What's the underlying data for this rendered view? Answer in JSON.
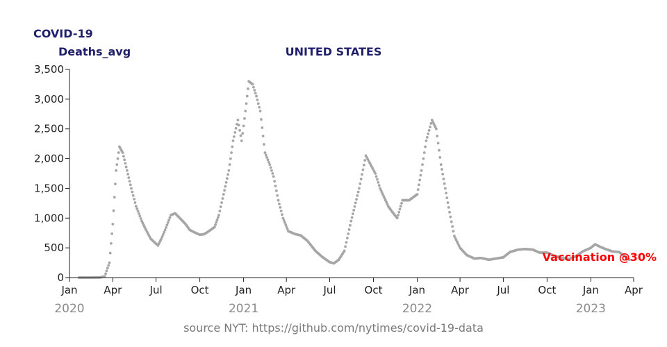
{
  "header": {
    "metric_title": "COVID-19",
    "metric_subtitle": "Deaths_avg",
    "region_title": "UNITED STATES"
  },
  "source_text": "source NYT: https://github.com/nytimes/covid-19-data",
  "annotation": {
    "text": "Vaccination @30%",
    "color": "#ff0000"
  },
  "colors": {
    "points": "#a6a6a6",
    "title": "#1f1f6b",
    "year_labels": "#8a8a8a"
  },
  "chart_data": {
    "type": "scatter",
    "title": "UNITED STATES",
    "ylabel": "Deaths_avg",
    "xlabel": "",
    "x_range": [
      "2020-01-01",
      "2023-04-01"
    ],
    "ylim": [
      0,
      3500
    ],
    "grid": false,
    "y_ticks": [
      0,
      500,
      1000,
      1500,
      2000,
      2500,
      3000,
      3500
    ],
    "y_tick_labels": [
      "0",
      "500",
      "1,000",
      "1,500",
      "2,000",
      "2,500",
      "3,000",
      "3,500"
    ],
    "x_ticks": [
      "2020-01-01",
      "2020-04-01",
      "2020-07-01",
      "2020-10-01",
      "2021-01-01",
      "2021-04-01",
      "2021-07-01",
      "2021-10-01",
      "2022-01-01",
      "2022-04-01",
      "2022-07-01",
      "2022-10-01",
      "2023-01-01",
      "2023-04-01"
    ],
    "x_tick_labels": [
      "Jan",
      "Apr",
      "Jul",
      "Oct",
      "Jan",
      "Apr",
      "Jul",
      "Oct",
      "Jan",
      "Apr",
      "Jul",
      "Oct",
      "Jan",
      "Apr"
    ],
    "year_labels": [
      {
        "date": "2020-01-01",
        "label": "2020"
      },
      {
        "date": "2021-01-01",
        "label": "2021"
      },
      {
        "date": "2022-01-01",
        "label": "2022"
      },
      {
        "date": "2023-01-01",
        "label": "2023"
      }
    ],
    "series": [
      {
        "points": [
          [
            "2020-01-21",
            0
          ],
          [
            "2020-02-15",
            0
          ],
          [
            "2020-03-05",
            2
          ],
          [
            "2020-03-15",
            20
          ],
          [
            "2020-03-25",
            250
          ],
          [
            "2020-04-01",
            900
          ],
          [
            "2020-04-08",
            1800
          ],
          [
            "2020-04-15",
            2200
          ],
          [
            "2020-04-22",
            2100
          ],
          [
            "2020-05-01",
            1800
          ],
          [
            "2020-05-10",
            1500
          ],
          [
            "2020-05-20",
            1200
          ],
          [
            "2020-06-01",
            950
          ],
          [
            "2020-06-10",
            800
          ],
          [
            "2020-06-20",
            650
          ],
          [
            "2020-07-01",
            570
          ],
          [
            "2020-07-05",
            540
          ],
          [
            "2020-07-12",
            650
          ],
          [
            "2020-07-20",
            800
          ],
          [
            "2020-08-01",
            1050
          ],
          [
            "2020-08-10",
            1080
          ],
          [
            "2020-08-20",
            1000
          ],
          [
            "2020-09-01",
            900
          ],
          [
            "2020-09-10",
            800
          ],
          [
            "2020-09-20",
            760
          ],
          [
            "2020-10-01",
            720
          ],
          [
            "2020-10-10",
            730
          ],
          [
            "2020-10-20",
            780
          ],
          [
            "2020-11-01",
            850
          ],
          [
            "2020-11-10",
            1050
          ],
          [
            "2020-11-20",
            1400
          ],
          [
            "2020-12-01",
            1800
          ],
          [
            "2020-12-10",
            2300
          ],
          [
            "2020-12-20",
            2650
          ],
          [
            "2020-12-28",
            2300
          ],
          [
            "2021-01-05",
            2800
          ],
          [
            "2021-01-12",
            3300
          ],
          [
            "2021-01-20",
            3250
          ],
          [
            "2021-01-28",
            3050
          ],
          [
            "2021-02-05",
            2800
          ],
          [
            "2021-02-15",
            2100
          ],
          [
            "2021-02-25",
            1900
          ],
          [
            "2021-03-05",
            1700
          ],
          [
            "2021-03-15",
            1300
          ],
          [
            "2021-03-25",
            1000
          ],
          [
            "2021-04-05",
            780
          ],
          [
            "2021-04-20",
            730
          ],
          [
            "2021-05-01",
            710
          ],
          [
            "2021-05-15",
            620
          ],
          [
            "2021-06-01",
            450
          ],
          [
            "2021-06-15",
            350
          ],
          [
            "2021-07-01",
            260
          ],
          [
            "2021-07-10",
            240
          ],
          [
            "2021-07-20",
            300
          ],
          [
            "2021-08-01",
            450
          ],
          [
            "2021-08-15",
            950
          ],
          [
            "2021-09-01",
            1500
          ],
          [
            "2021-09-15",
            2050
          ],
          [
            "2021-09-25",
            1900
          ],
          [
            "2021-10-05",
            1750
          ],
          [
            "2021-10-15",
            1500
          ],
          [
            "2021-11-01",
            1200
          ],
          [
            "2021-11-10",
            1100
          ],
          [
            "2021-11-20",
            1000
          ],
          [
            "2021-12-01",
            1300
          ],
          [
            "2021-12-15",
            1300
          ],
          [
            "2022-01-01",
            1400
          ],
          [
            "2022-01-10",
            1800
          ],
          [
            "2022-01-20",
            2300
          ],
          [
            "2022-02-01",
            2650
          ],
          [
            "2022-02-10",
            2500
          ],
          [
            "2022-02-20",
            1900
          ],
          [
            "2022-03-01",
            1500
          ],
          [
            "2022-03-10",
            1100
          ],
          [
            "2022-03-20",
            700
          ],
          [
            "2022-04-01",
            500
          ],
          [
            "2022-04-15",
            380
          ],
          [
            "2022-05-01",
            320
          ],
          [
            "2022-05-15",
            330
          ],
          [
            "2022-06-01",
            300
          ],
          [
            "2022-06-15",
            320
          ],
          [
            "2022-07-01",
            340
          ],
          [
            "2022-07-15",
            430
          ],
          [
            "2022-08-01",
            470
          ],
          [
            "2022-08-15",
            480
          ],
          [
            "2022-09-01",
            470
          ],
          [
            "2022-09-15",
            420
          ],
          [
            "2022-10-01",
            420
          ],
          [
            "2022-10-15",
            370
          ],
          [
            "2022-11-01",
            330
          ],
          [
            "2022-11-15",
            310
          ],
          [
            "2022-12-01",
            360
          ],
          [
            "2022-12-15",
            440
          ],
          [
            "2023-01-01",
            500
          ],
          [
            "2023-01-10",
            560
          ],
          [
            "2023-01-20",
            520
          ],
          [
            "2023-02-01",
            480
          ],
          [
            "2023-02-15",
            440
          ],
          [
            "2023-03-01",
            430
          ],
          [
            "2023-03-10",
            380
          ],
          [
            "2023-03-23",
            300
          ]
        ]
      }
    ]
  }
}
